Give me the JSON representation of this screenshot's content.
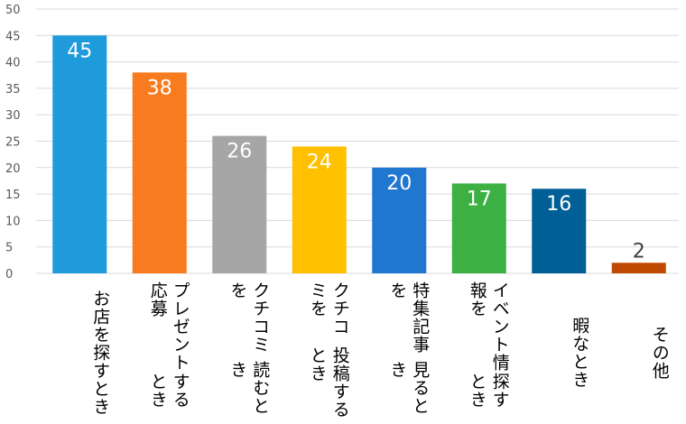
{
  "chart_data": {
    "type": "bar",
    "categories": [
      "お店を探すとき",
      "プレゼント応募するとき",
      "クチコミを読むとき",
      "クチコミを投稿するとき",
      "特集記事を見るとき",
      "イベント情報を探すとき",
      "暇なとき",
      "その他"
    ],
    "category_label_lines": [
      [
        "お店を探すとき"
      ],
      [
        "プレゼント応募",
        "するとき"
      ],
      [
        "クチコミを",
        "読むとき"
      ],
      [
        "クチコミを",
        "投稿するとき"
      ],
      [
        "特集記事を",
        "見るとき"
      ],
      [
        "イベント情報を",
        "探すとき"
      ],
      [
        "暇なとき"
      ],
      [
        "その他"
      ]
    ],
    "values": [
      45,
      38,
      26,
      24,
      20,
      17,
      16,
      2
    ],
    "colors": [
      "#1f9bdc",
      "#f87b20",
      "#a6a6a6",
      "#ffc000",
      "#1f77d0",
      "#3cb043",
      "#005f96",
      "#c04a00"
    ],
    "label_colors": [
      "#ffffff",
      "#ffffff",
      "#ffffff",
      "#ffffff",
      "#ffffff",
      "#ffffff",
      "#ffffff",
      "#404040"
    ],
    "ylim": [
      0,
      50
    ],
    "yticks": [
      0,
      5,
      10,
      15,
      20,
      25,
      30,
      35,
      40,
      45,
      50
    ],
    "title": "",
    "xlabel": "",
    "ylabel": "",
    "grid": true,
    "gridline_color": "#d9d9d9"
  }
}
